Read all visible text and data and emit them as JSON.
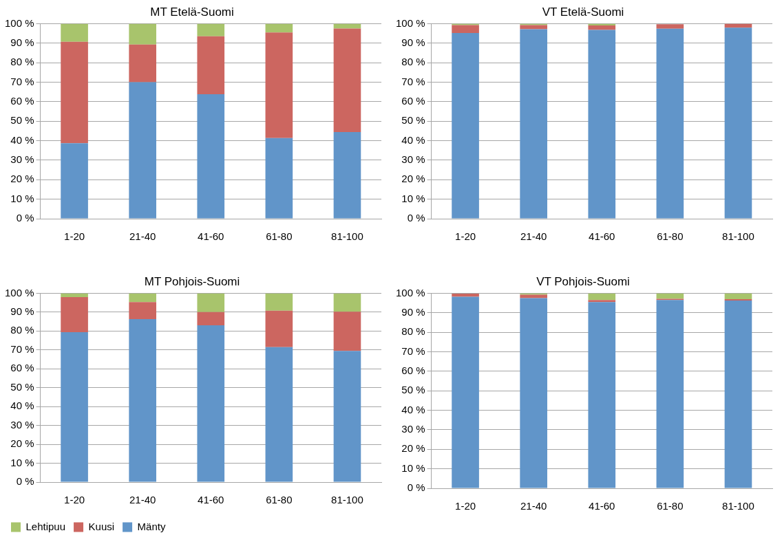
{
  "chart_data": [
    {
      "type": "bar",
      "title": "MT Etelä-Suomi",
      "categories": [
        "1-20",
        "21-40",
        "41-60",
        "61-80",
        "81-100"
      ],
      "stacked": true,
      "grid": "y",
      "legend": false,
      "ylim": [
        0,
        100
      ],
      "yticks": [
        {
          "value": 0,
          "label": "0 %"
        },
        {
          "value": 10,
          "label": "10 %"
        },
        {
          "value": 20,
          "label": "20 %"
        },
        {
          "value": 30,
          "label": "30 %"
        },
        {
          "value": 40,
          "label": "40 %"
        },
        {
          "value": 50,
          "label": "50 %"
        },
        {
          "value": 60,
          "label": "60 %"
        },
        {
          "value": 70,
          "label": "70 %"
        },
        {
          "value": 80,
          "label": "80 %"
        },
        {
          "value": 90,
          "label": "90 %"
        },
        {
          "value": 100,
          "label": "100 %"
        }
      ],
      "series": [
        {
          "color": "#6195c9",
          "values": [
            38.7,
            70,
            63.8,
            41.3,
            44.4
          ]
        },
        {
          "color": "#cc6660",
          "values": [
            52,
            19.3,
            29.7,
            54.2,
            53.1
          ]
        },
        {
          "color": "#a8c46c",
          "values": [
            9.3,
            10.7,
            6.5,
            4.5,
            2.5
          ]
        }
      ]
    },
    {
      "type": "bar",
      "title": "VT Etelä-Suomi",
      "categories": [
        "1-20",
        "21-40",
        "41-60",
        "61-80",
        "81-100"
      ],
      "stacked": true,
      "grid": "y",
      "legend": false,
      "ylim": [
        0,
        100
      ],
      "yticks": [
        {
          "value": 0,
          "label": "0 %"
        },
        {
          "value": 10,
          "label": "10 %"
        },
        {
          "value": 20,
          "label": "20 %"
        },
        {
          "value": 30,
          "label": "30 %"
        },
        {
          "value": 40,
          "label": "40 %"
        },
        {
          "value": 50,
          "label": "50 %"
        },
        {
          "value": 60,
          "label": "60 %"
        },
        {
          "value": 70,
          "label": "70 %"
        },
        {
          "value": 80,
          "label": "80 %"
        },
        {
          "value": 90,
          "label": "90 %"
        },
        {
          "value": 100,
          "label": "100 %"
        }
      ],
      "series": [
        {
          "color": "#6195c9",
          "values": [
            95.2,
            97.1,
            96.8,
            97.4,
            97.9
          ]
        },
        {
          "color": "#cc6660",
          "values": [
            4.1,
            2.2,
            2.3,
            2.3,
            2.1
          ]
        },
        {
          "color": "#a8c46c",
          "values": [
            0.7,
            0.7,
            0.9,
            null,
            0
          ]
        }
      ]
    },
    {
      "type": "bar",
      "title": "MT Pohjois-Suomi",
      "categories": [
        "1-20",
        "21-40",
        "41-60",
        "61-80",
        "81-100"
      ],
      "stacked": true,
      "grid": "y",
      "legend": "bottom",
      "ylim": [
        0,
        100
      ],
      "yticks": [
        {
          "value": 0,
          "label": "0 %"
        },
        {
          "value": 10,
          "label": "10 %"
        },
        {
          "value": 20,
          "label": "20 %"
        },
        {
          "value": 30,
          "label": "30 %"
        },
        {
          "value": 40,
          "label": "40 %"
        },
        {
          "value": 50,
          "label": "50 %"
        },
        {
          "value": 60,
          "label": "60 %"
        },
        {
          "value": 70,
          "label": "70 %"
        },
        {
          "value": 80,
          "label": "80 %"
        },
        {
          "value": 90,
          "label": "90 %"
        },
        {
          "value": 100,
          "label": "100 %"
        }
      ],
      "series": [
        {
          "name": "Mänty",
          "color": "#6195c9",
          "values": [
            79.4,
            86.3,
            83,
            71.5,
            69.5
          ]
        },
        {
          "name": "Kuusi",
          "color": "#cc6660",
          "values": [
            18.6,
            9,
            7,
            19.3,
            20.7
          ]
        },
        {
          "name": "Lehtipuu",
          "color": "#a8c46c",
          "values": [
            2,
            4.7,
            10,
            9.2,
            9.8
          ]
        }
      ]
    },
    {
      "type": "bar",
      "title": "VT Pohjois-Suomi",
      "categories": [
        "1-20",
        "21-40",
        "41-60",
        "61-80",
        "81-100"
      ],
      "stacked": true,
      "grid": "y",
      "legend": false,
      "ylim": [
        0,
        100
      ],
      "yticks": [
        {
          "value": 0,
          "label": "0 %"
        },
        {
          "value": 10,
          "label": "10 %"
        },
        {
          "value": 20,
          "label": "20 %"
        },
        {
          "value": 30,
          "label": "30 %"
        },
        {
          "value": 40,
          "label": "40 %"
        },
        {
          "value": 50,
          "label": "50 %"
        },
        {
          "value": 60,
          "label": "60 %"
        },
        {
          "value": 70,
          "label": "70 %"
        },
        {
          "value": 80,
          "label": "80 %"
        },
        {
          "value": 90,
          "label": "90 %"
        },
        {
          "value": 100,
          "label": "100 %"
        }
      ],
      "series": [
        {
          "color": "#6195c9",
          "values": [
            98.2,
            97.5,
            95.5,
            96.5,
            96.3
          ]
        },
        {
          "color": "#cc6660",
          "values": [
            1.6,
            1.8,
            1,
            0.6,
            0.7
          ]
        },
        {
          "color": "#a8c46c",
          "values": [
            null,
            0.7,
            3.5,
            2.9,
            3
          ]
        }
      ]
    }
  ]
}
